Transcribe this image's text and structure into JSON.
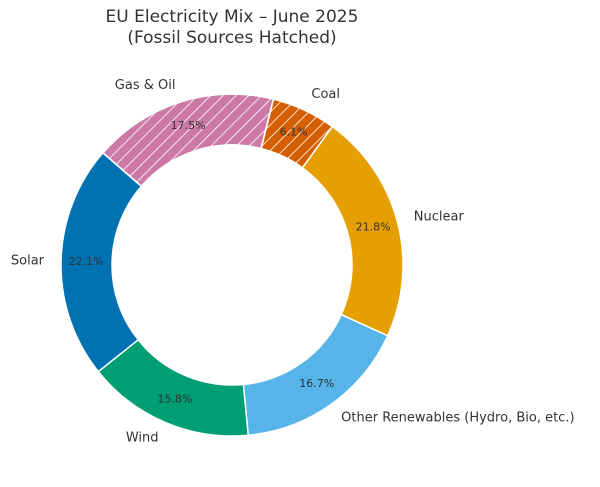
{
  "chart_data": {
    "type": "pie",
    "style": "donut",
    "title": [
      "EU Electricity Mix – June 2025",
      "(Fossil Sources Hatched)"
    ],
    "categories": [
      "Coal",
      "Nuclear",
      "Other Renewables (Hydro, Bio, etc.)",
      "Wind",
      "Solar",
      "Gas & Oil"
    ],
    "values": [
      6.1,
      21.8,
      16.7,
      15.8,
      22.1,
      17.5
    ],
    "value_labels": [
      "6.1%",
      "21.8%",
      "16.7%",
      "15.8%",
      "22.1%",
      "17.5%"
    ],
    "colors": [
      "#d55e00",
      "#e69f00",
      "#56b4e9",
      "#009e73",
      "#0072b2",
      "#cc79a7"
    ],
    "hatched": [
      true,
      false,
      false,
      false,
      false,
      true
    ],
    "legend": "none"
  }
}
